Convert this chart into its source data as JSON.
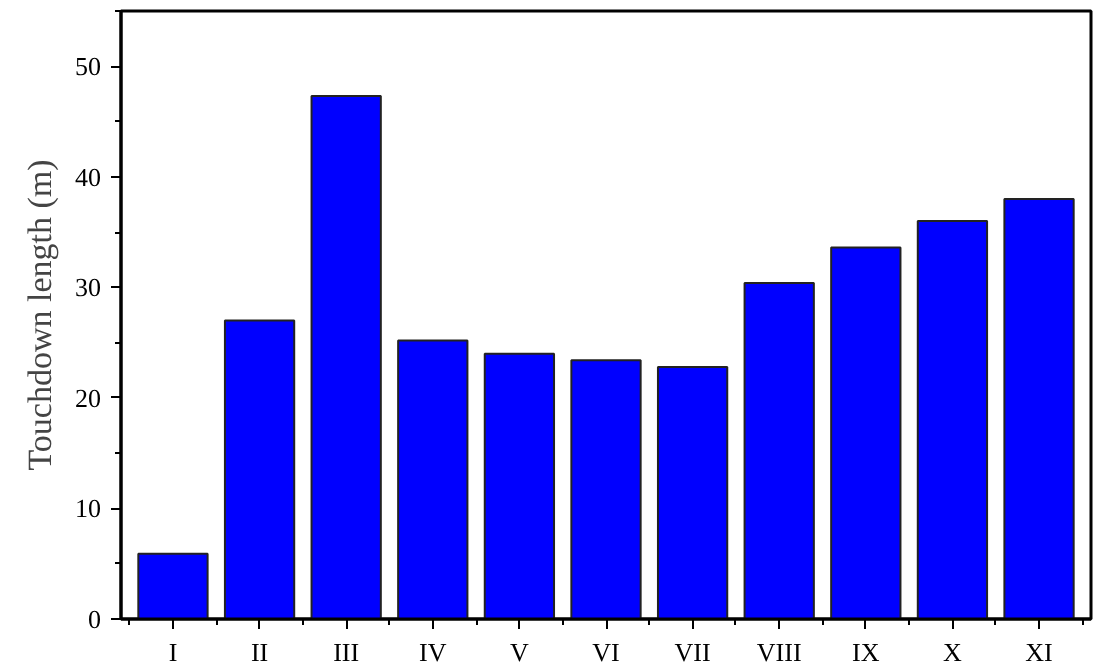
{
  "chart_data": {
    "type": "bar",
    "ylabel": "Touchdown length (m)",
    "categories": [
      "I",
      "II",
      "III",
      "IV",
      "V",
      "VI",
      "VII",
      "VIII",
      "IX",
      "X",
      "XI"
    ],
    "values": [
      5.9,
      27.0,
      47.3,
      25.2,
      24.0,
      23.4,
      22.8,
      30.4,
      33.6,
      36.0,
      38.0
    ],
    "color": "#0000ff",
    "ylim": [
      0,
      55
    ],
    "yticks": [
      0,
      10,
      20,
      30,
      40,
      50
    ],
    "grid": false
  }
}
